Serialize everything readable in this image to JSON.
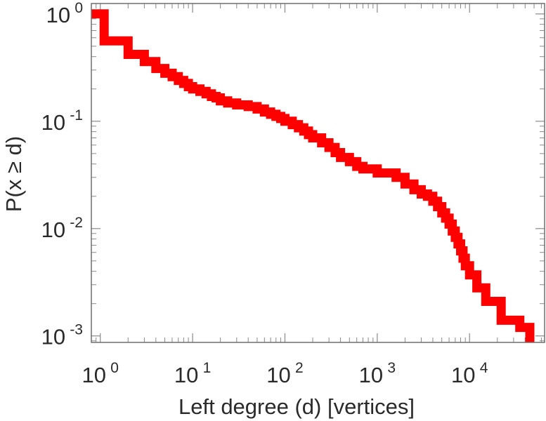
{
  "chart_data": {
    "type": "line",
    "style": "step",
    "xscale": "log",
    "yscale": "log",
    "xlabel": "Left degree (d) [vertices]",
    "ylabel": "P(x ≥ d)",
    "xlim": [
      0.8,
      65000
    ],
    "ylim": [
      0.00087,
      1.25
    ],
    "x_ticks": [
      {
        "base": "10",
        "exp": "0",
        "value": 1
      },
      {
        "base": "10",
        "exp": "1",
        "value": 10
      },
      {
        "base": "10",
        "exp": "2",
        "value": 100
      },
      {
        "base": "10",
        "exp": "3",
        "value": 1000
      },
      {
        "base": "10",
        "exp": "4",
        "value": 10000
      }
    ],
    "y_ticks": [
      {
        "base": "10",
        "exp": "0",
        "value": 1
      },
      {
        "base": "10",
        "exp": "-1",
        "value": 0.1
      },
      {
        "base": "10",
        "exp": "-2",
        "value": 0.01
      },
      {
        "base": "10",
        "exp": "-3",
        "value": 0.001
      }
    ],
    "grid": false,
    "color": "#ff0000",
    "series": [
      {
        "x": [
          0.8,
          1,
          1.1,
          2,
          3,
          4,
          5,
          6,
          7,
          8,
          9,
          10,
          12,
          14,
          16,
          18,
          20,
          24,
          30,
          40,
          50,
          60,
          70,
          80,
          90,
          100,
          120,
          140,
          160,
          180,
          200,
          250,
          300,
          350,
          400,
          500,
          600,
          700,
          800,
          900,
          1000,
          1300,
          1600,
          2000,
          2500,
          3000,
          3500,
          4000,
          4500,
          5000,
          5500,
          6000,
          6500,
          7000,
          7500,
          8000,
          8500,
          9000,
          10000,
          12000,
          15000,
          22000,
          35000,
          45000,
          45000
        ],
        "y": [
          1.0,
          1.0,
          0.56,
          0.42,
          0.36,
          0.31,
          0.28,
          0.26,
          0.24,
          0.225,
          0.21,
          0.2,
          0.19,
          0.18,
          0.17,
          0.165,
          0.155,
          0.148,
          0.142,
          0.137,
          0.13,
          0.122,
          0.116,
          0.111,
          0.106,
          0.1,
          0.093,
          0.087,
          0.081,
          0.075,
          0.07,
          0.063,
          0.057,
          0.051,
          0.046,
          0.042,
          0.038,
          0.036,
          0.036,
          0.036,
          0.033,
          0.033,
          0.03,
          0.026,
          0.023,
          0.021,
          0.02,
          0.018,
          0.016,
          0.014,
          0.0125,
          0.011,
          0.0095,
          0.0083,
          0.0072,
          0.0062,
          0.0053,
          0.0045,
          0.0037,
          0.0028,
          0.0021,
          0.0014,
          0.0012,
          0.0009,
          0.0009
        ]
      }
    ]
  }
}
